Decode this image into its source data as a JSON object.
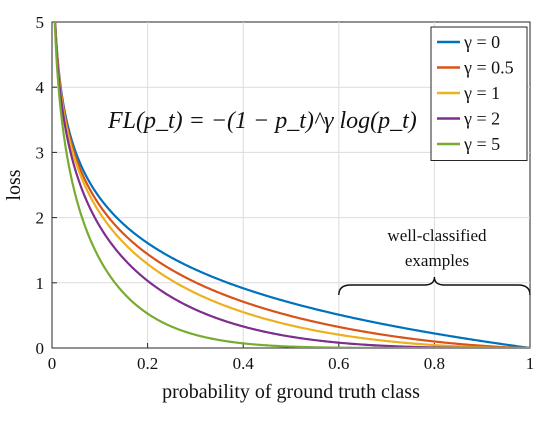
{
  "chart_data": {
    "type": "line",
    "xlabel": "probability of ground truth class",
    "ylabel": "loss",
    "xlim": [
      0,
      1
    ],
    "ylim": [
      0,
      5
    ],
    "x_ticks": [
      0,
      0.2,
      0.4,
      0.6,
      0.8,
      1
    ],
    "x_tick_labels": [
      "0",
      "0.2",
      "0.4",
      "0.6",
      "0.8",
      "1"
    ],
    "y_ticks": [
      0,
      1,
      2,
      3,
      4,
      5
    ],
    "y_tick_labels": [
      "0",
      "1",
      "2",
      "3",
      "4",
      "5"
    ],
    "grid": true,
    "legend_position": "top-right",
    "formula": "FL(p_t) = −(1 − p_t)^γ log(p_t)",
    "annotation": {
      "line1": "well-classified",
      "line2": "examples",
      "x_start": 0.6,
      "x_end": 1
    },
    "x": [
      0.005,
      0.01,
      0.02,
      0.03,
      0.05,
      0.07,
      0.1,
      0.15,
      0.2,
      0.25,
      0.3,
      0.4,
      0.5,
      0.6,
      0.7,
      0.8,
      0.9,
      1.0
    ],
    "series": [
      {
        "name": "γ = 0",
        "gamma": 0,
        "color": "#0072BD",
        "values": [
          5.298,
          4.605,
          3.912,
          3.507,
          2.996,
          2.659,
          2.303,
          1.897,
          1.609,
          1.386,
          1.204,
          0.916,
          0.693,
          0.511,
          0.357,
          0.223,
          0.105,
          0.0
        ]
      },
      {
        "name": "γ = 0.5",
        "gamma": 0.5,
        "color": "#D95319",
        "values": [
          5.285,
          4.582,
          3.872,
          3.454,
          2.92,
          2.564,
          2.185,
          1.749,
          1.439,
          1.2,
          1.007,
          0.71,
          0.49,
          0.323,
          0.196,
          0.1,
          0.033,
          0.0
        ]
      },
      {
        "name": "γ = 1",
        "gamma": 1,
        "color": "#EDB120",
        "values": [
          5.272,
          4.559,
          3.834,
          3.402,
          2.846,
          2.473,
          2.072,
          1.612,
          1.288,
          1.04,
          0.843,
          0.55,
          0.347,
          0.204,
          0.107,
          0.045,
          0.011,
          0.0
        ]
      },
      {
        "name": "γ = 2",
        "gamma": 2,
        "color": "#7E2F8E",
        "values": [
          5.245,
          4.514,
          3.757,
          3.3,
          2.704,
          2.3,
          1.865,
          1.371,
          1.03,
          0.78,
          0.59,
          0.33,
          0.173,
          0.082,
          0.032,
          0.009,
          0.001,
          0.0
        ]
      },
      {
        "name": "γ = 5",
        "gamma": 5,
        "color": "#77AC30",
        "values": [
          5.167,
          4.38,
          3.538,
          3.013,
          2.318,
          1.845,
          1.36,
          0.842,
          0.527,
          0.329,
          0.202,
          0.071,
          0.022,
          0.005,
          0.001,
          0.0,
          0.0,
          0.0
        ]
      }
    ]
  }
}
